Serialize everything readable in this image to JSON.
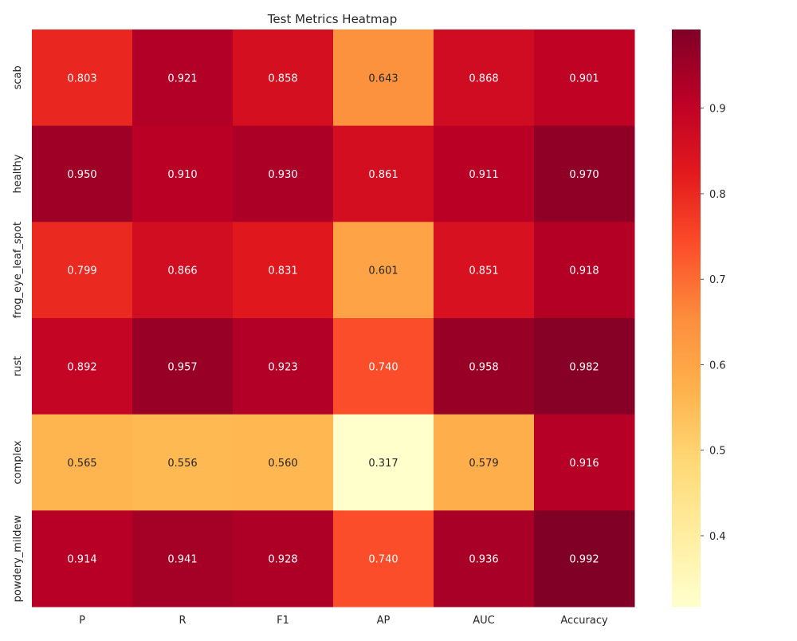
{
  "chart_data": {
    "type": "heatmap",
    "title": "Test Metrics Heatmap",
    "xlabel": "",
    "ylabel": "",
    "columns": [
      "P",
      "R",
      "F1",
      "AP",
      "AUC",
      "Accuracy"
    ],
    "rows": [
      "scab",
      "healthy",
      "frog_eye_leaf_spot",
      "rust",
      "complex",
      "powdery_mildew"
    ],
    "values": [
      [
        0.803,
        0.921,
        0.858,
        0.643,
        0.868,
        0.901
      ],
      [
        0.95,
        0.91,
        0.93,
        0.861,
        0.911,
        0.97
      ],
      [
        0.799,
        0.866,
        0.831,
        0.601,
        0.851,
        0.918
      ],
      [
        0.892,
        0.957,
        0.923,
        0.74,
        0.958,
        0.982
      ],
      [
        0.565,
        0.556,
        0.56,
        0.317,
        0.579,
        0.916
      ],
      [
        0.914,
        0.941,
        0.928,
        0.74,
        0.936,
        0.992
      ]
    ],
    "value_labels": [
      [
        "0.803",
        "0.921",
        "0.858",
        "0.643",
        "0.868",
        "0.901"
      ],
      [
        "0.950",
        "0.910",
        "0.930",
        "0.861",
        "0.911",
        "0.970"
      ],
      [
        "0.799",
        "0.866",
        "0.831",
        "0.601",
        "0.851",
        "0.918"
      ],
      [
        "0.892",
        "0.957",
        "0.923",
        "0.740",
        "0.958",
        "0.982"
      ],
      [
        "0.565",
        "0.556",
        "0.560",
        "0.317",
        "0.579",
        "0.916"
      ],
      [
        "0.914",
        "0.941",
        "0.928",
        "0.740",
        "0.936",
        "0.992"
      ]
    ],
    "colormap": "YlOrRd",
    "color_range": [
      0.317,
      0.992
    ],
    "colorbar_ticks": [
      {
        "value": 0.4,
        "label": "0.4"
      },
      {
        "value": 0.5,
        "label": "0.5"
      },
      {
        "value": 0.6,
        "label": "0.6"
      },
      {
        "value": 0.7,
        "label": "0.7"
      },
      {
        "value": 0.8,
        "label": "0.8"
      },
      {
        "value": 0.9,
        "label": "0.9"
      }
    ],
    "grid": false,
    "legend": "colorbar-right"
  }
}
